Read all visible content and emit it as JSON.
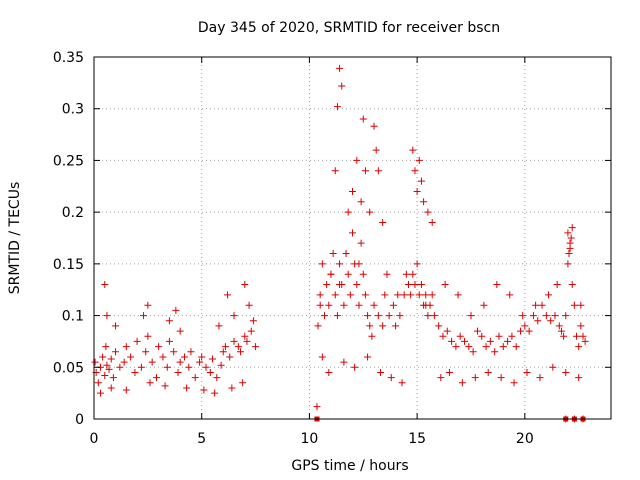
{
  "chart_data": {
    "type": "scatter",
    "title": "Day 345 of 2020, SRMTID for receiver bscn",
    "xlabel": "GPS time / hours",
    "ylabel": "SRMTID / TECUs",
    "xlim": [
      0,
      24
    ],
    "ylim": [
      0,
      0.35
    ],
    "xticks": [
      0,
      5,
      10,
      15,
      20
    ],
    "xtick_labels": [
      "0",
      "5",
      "10",
      "15",
      "20"
    ],
    "yticks": [
      0,
      0.05,
      0.1,
      0.15,
      0.2,
      0.25,
      0.3,
      0.35
    ],
    "ytick_labels": [
      "0",
      "0.05",
      "0.1",
      "0.15",
      "0.2",
      "0.25",
      "0.3",
      "0.35"
    ],
    "grid": true,
    "marker": "plus",
    "color": "#e00000",
    "series": [
      {
        "name": "SRMTID",
        "description": "dense scatter of SRMTID values; points below are a representative sample read from the plot",
        "x": [
          0.05,
          0.1,
          0.2,
          0.3,
          0.4,
          0.5,
          0.55,
          0.6,
          0.7,
          0.8,
          0.9,
          1.0,
          1.2,
          1.4,
          1.5,
          1.7,
          1.9,
          2.0,
          2.2,
          2.4,
          2.5,
          2.7,
          2.9,
          3.0,
          3.2,
          3.4,
          3.5,
          3.7,
          3.9,
          4.0,
          4.2,
          4.4,
          4.5,
          4.7,
          4.9,
          5.0,
          5.2,
          5.4,
          5.5,
          5.7,
          5.9,
          6.0,
          6.1,
          6.3,
          6.5,
          6.7,
          6.8,
          7.0,
          7.1,
          7.3,
          7.5,
          0.5,
          0.6,
          1.0,
          2.3,
          2.5,
          3.5,
          3.8,
          4.0,
          5.8,
          6.2,
          6.5,
          7.0,
          7.2,
          7.4,
          0.3,
          0.8,
          1.5,
          2.6,
          3.3,
          4.3,
          5.1,
          5.6,
          6.4,
          6.9,
          10.4,
          10.5,
          10.6,
          10.7,
          10.8,
          10.9,
          11.0,
          11.1,
          11.2,
          11.3,
          11.4,
          11.5,
          11.6,
          11.7,
          11.8,
          11.9,
          12.0,
          12.1,
          12.2,
          12.3,
          12.4,
          12.5,
          12.6,
          12.7,
          12.8,
          12.9,
          13.0,
          13.2,
          13.4,
          13.5,
          13.7,
          13.9,
          14.0,
          14.2,
          14.4,
          14.5,
          14.6,
          14.7,
          14.8,
          14.9,
          15.0,
          15.1,
          15.2,
          15.3,
          15.4,
          15.5,
          15.6,
          15.7,
          15.8,
          16.0,
          16.2,
          16.4,
          16.6,
          16.8,
          17.0,
          17.2,
          17.4,
          17.6,
          17.8,
          18.0,
          18.2,
          18.4,
          18.6,
          18.8,
          19.0,
          19.2,
          19.4,
          19.6,
          19.8,
          20.0,
          20.2,
          20.4,
          20.6,
          20.8,
          21.0,
          21.2,
          21.4,
          21.6,
          21.7,
          21.8,
          21.9,
          22.0,
          22.1,
          22.2,
          22.3,
          22.4,
          22.5,
          22.6,
          22.7,
          22.8,
          11.2,
          11.3,
          11.4,
          11.5,
          11.8,
          12.0,
          12.2,
          12.4,
          12.5,
          12.6,
          12.8,
          13.0,
          13.1,
          13.2,
          13.4,
          14.8,
          14.9,
          15.0,
          15.1,
          15.2,
          15.3,
          15.5,
          15.7,
          10.6,
          10.9,
          11.6,
          12.1,
          12.7,
          13.3,
          13.8,
          14.3,
          16.1,
          16.5,
          17.1,
          17.7,
          18.3,
          18.9,
          19.5,
          20.1,
          20.7,
          21.3,
          21.9,
          22.5,
          10.5,
          11.0,
          11.4,
          12.3,
          13.6,
          14.1,
          15.4,
          16.3,
          16.9,
          17.5,
          18.1,
          18.7,
          19.3,
          19.9,
          20.5,
          21.1,
          21.5,
          22.6,
          22.0,
          22.1,
          22.2,
          22.05,
          22.15,
          10.35,
          21.9,
          22.3,
          22.7
        ],
        "y": [
          0.055,
          0.045,
          0.035,
          0.05,
          0.06,
          0.042,
          0.07,
          0.052,
          0.048,
          0.058,
          0.04,
          0.065,
          0.05,
          0.055,
          0.07,
          0.06,
          0.045,
          0.075,
          0.05,
          0.065,
          0.08,
          0.055,
          0.04,
          0.07,
          0.06,
          0.05,
          0.075,
          0.065,
          0.045,
          0.055,
          0.06,
          0.05,
          0.065,
          0.04,
          0.055,
          0.06,
          0.05,
          0.045,
          0.058,
          0.04,
          0.052,
          0.065,
          0.07,
          0.06,
          0.075,
          0.07,
          0.065,
          0.08,
          0.075,
          0.085,
          0.07,
          0.13,
          0.1,
          0.09,
          0.1,
          0.11,
          0.095,
          0.105,
          0.085,
          0.09,
          0.12,
          0.1,
          0.13,
          0.11,
          0.095,
          0.025,
          0.03,
          0.028,
          0.035,
          0.032,
          0.03,
          0.028,
          0.025,
          0.03,
          0.035,
          0.09,
          0.12,
          0.15,
          0.1,
          0.13,
          0.11,
          0.14,
          0.16,
          0.12,
          0.1,
          0.15,
          0.13,
          0.11,
          0.16,
          0.14,
          0.12,
          0.18,
          0.15,
          0.13,
          0.11,
          0.17,
          0.14,
          0.12,
          0.1,
          0.09,
          0.08,
          0.11,
          0.1,
          0.09,
          0.12,
          0.1,
          0.11,
          0.09,
          0.1,
          0.12,
          0.14,
          0.13,
          0.12,
          0.14,
          0.13,
          0.15,
          0.12,
          0.13,
          0.11,
          0.12,
          0.1,
          0.11,
          0.12,
          0.1,
          0.09,
          0.08,
          0.085,
          0.075,
          0.07,
          0.08,
          0.075,
          0.07,
          0.065,
          0.085,
          0.08,
          0.07,
          0.075,
          0.065,
          0.08,
          0.07,
          0.075,
          0.08,
          0.07,
          0.085,
          0.09,
          0.085,
          0.1,
          0.095,
          0.11,
          0.1,
          0.095,
          0.1,
          0.09,
          0.085,
          0.08,
          0.1,
          0.15,
          0.165,
          0.13,
          0.11,
          0.08,
          0.07,
          0.09,
          0.08,
          0.075,
          0.24,
          0.302,
          0.339,
          0.322,
          0.2,
          0.22,
          0.25,
          0.21,
          0.29,
          0.24,
          0.2,
          0.283,
          0.26,
          0.24,
          0.19,
          0.26,
          0.24,
          0.22,
          0.25,
          0.23,
          0.21,
          0.2,
          0.19,
          0.06,
          0.045,
          0.055,
          0.05,
          0.06,
          0.045,
          0.04,
          0.035,
          0.04,
          0.045,
          0.035,
          0.04,
          0.045,
          0.04,
          0.035,
          0.045,
          0.04,
          0.05,
          0.045,
          0.04,
          0.11,
          0.14,
          0.13,
          0.15,
          0.14,
          0.12,
          0.11,
          0.13,
          0.12,
          0.1,
          0.11,
          0.13,
          0.12,
          0.1,
          0.11,
          0.12,
          0.13,
          0.11,
          0.18,
          0.17,
          0.185,
          0.16,
          0.175,
          0.012,
          0.0,
          0.0,
          0.0
        ]
      }
    ],
    "zero_markers_x": [
      10.35,
      21.9,
      22.3,
      22.7
    ]
  }
}
